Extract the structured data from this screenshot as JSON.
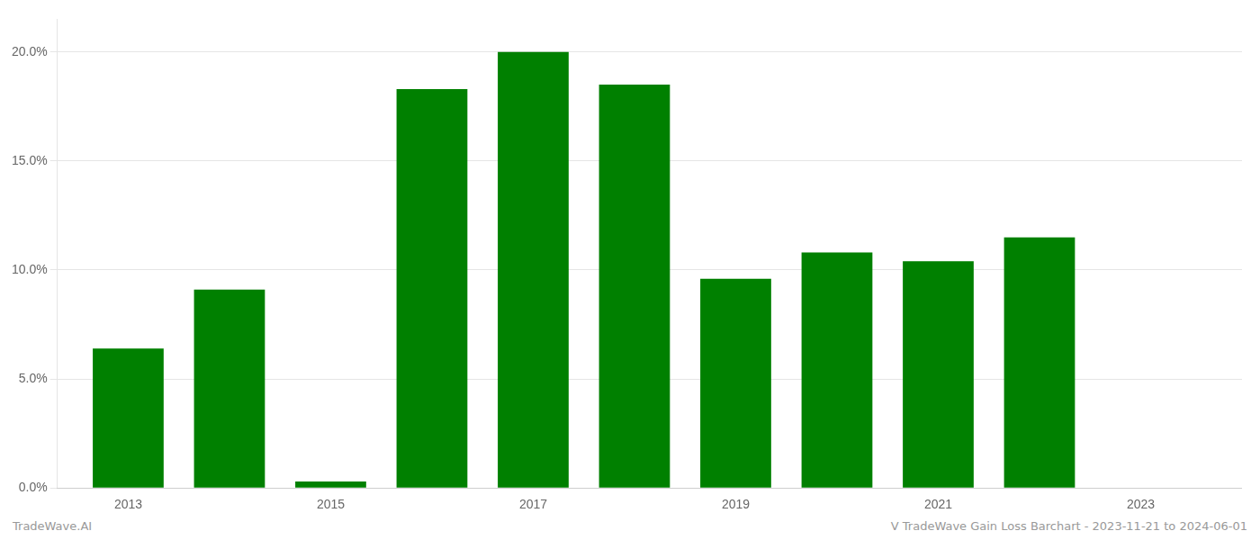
{
  "chart_data": {
    "type": "bar",
    "x": [
      2013,
      2014,
      2015,
      2016,
      2017,
      2018,
      2019,
      2020,
      2021,
      2022,
      2023
    ],
    "values": [
      0.064,
      0.091,
      0.003,
      0.183,
      0.2,
      0.185,
      0.096,
      0.108,
      0.104,
      0.115,
      0.0
    ],
    "color": "#008000",
    "xlim": [
      2012.3,
      2024.0
    ],
    "xticks": [
      2013,
      2015,
      2017,
      2019,
      2021,
      2023
    ],
    "ylim": [
      0,
      0.215
    ],
    "yticks": [
      {
        "value": 0.0,
        "label": "0.0%"
      },
      {
        "value": 0.05,
        "label": "5.0%"
      },
      {
        "value": 0.1,
        "label": "10.0%"
      },
      {
        "value": 0.15,
        "label": "15.0%"
      },
      {
        "value": 0.2,
        "label": "20.0%"
      }
    ],
    "grid": "y",
    "annotations": [
      "TradeWave.AI",
      "V TradeWave Gain Loss Barchart - 2023-11-21 to 2024-06-01"
    ]
  }
}
